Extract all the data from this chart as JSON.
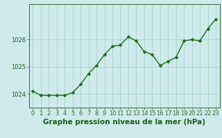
{
  "x": [
    0,
    1,
    2,
    3,
    4,
    5,
    6,
    7,
    8,
    9,
    10,
    11,
    12,
    13,
    14,
    15,
    16,
    17,
    18,
    19,
    20,
    21,
    22,
    23
  ],
  "y": [
    1024.1,
    1023.95,
    1023.95,
    1023.95,
    1023.95,
    1024.05,
    1024.35,
    1024.75,
    1025.05,
    1025.45,
    1025.75,
    1025.8,
    1026.1,
    1025.95,
    1025.55,
    1025.45,
    1025.05,
    1025.2,
    1025.35,
    1025.95,
    1026.0,
    1025.95,
    1026.4,
    1026.75
  ],
  "line_color": "#1a6b1a",
  "marker": "D",
  "marker_size": 2.5,
  "marker_color": "#1a6b1a",
  "bg_color": "#ceeaea",
  "grid_color": "#a0cccc",
  "xlabel": "Graphe pression niveau de la mer (hPa)",
  "xlabel_fontsize": 7.5,
  "xlabel_color": "#1a5c1a",
  "tick_color": "#1a5c1a",
  "tick_fontsize": 6,
  "ylim": [
    1023.5,
    1027.3
  ],
  "yticks": [
    1024,
    1025,
    1026
  ],
  "xlim": [
    -0.5,
    23.5
  ],
  "spine_color": "#336633",
  "linewidth": 1.0
}
